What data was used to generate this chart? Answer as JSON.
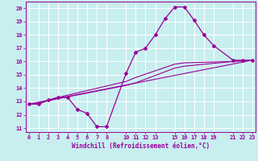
{
  "xlabel": "Windchill (Refroidissement éolien,°C)",
  "bg_color": "#c8eef0",
  "grid_color": "#ffffff",
  "line_color": "#990099",
  "line1_x": [
    0,
    1,
    2,
    3,
    4,
    5,
    6,
    7,
    8,
    10,
    11,
    12,
    13,
    14,
    15,
    16,
    17,
    18,
    19,
    21,
    22,
    23
  ],
  "line1_y": [
    12.8,
    12.8,
    13.1,
    13.3,
    13.3,
    12.4,
    12.1,
    11.1,
    11.1,
    15.1,
    16.7,
    17.0,
    18.0,
    19.2,
    20.1,
    20.1,
    19.1,
    18.0,
    17.2,
    16.1,
    16.1,
    16.1
  ],
  "line2_x": [
    0,
    23
  ],
  "line2_y": [
    12.8,
    16.1
  ],
  "line3_x": [
    0,
    1,
    2,
    3,
    10,
    11,
    15,
    16,
    21,
    22,
    23
  ],
  "line3_y": [
    12.8,
    12.8,
    13.1,
    13.3,
    14.5,
    14.8,
    15.8,
    15.9,
    16.0,
    16.05,
    16.1
  ],
  "line4_x": [
    0,
    1,
    2,
    3,
    10,
    11,
    15,
    16,
    21,
    22,
    23
  ],
  "line4_y": [
    12.8,
    12.85,
    13.05,
    13.2,
    14.2,
    14.4,
    15.5,
    15.65,
    16.0,
    16.05,
    16.1
  ],
  "xlim": [
    -0.3,
    23.3
  ],
  "ylim": [
    10.7,
    20.5
  ],
  "xticks": [
    0,
    1,
    2,
    3,
    4,
    5,
    6,
    7,
    8,
    10,
    11,
    12,
    13,
    15,
    16,
    17,
    18,
    19,
    21,
    22,
    23
  ],
  "yticks": [
    11,
    12,
    13,
    14,
    15,
    16,
    17,
    18,
    19,
    20
  ]
}
